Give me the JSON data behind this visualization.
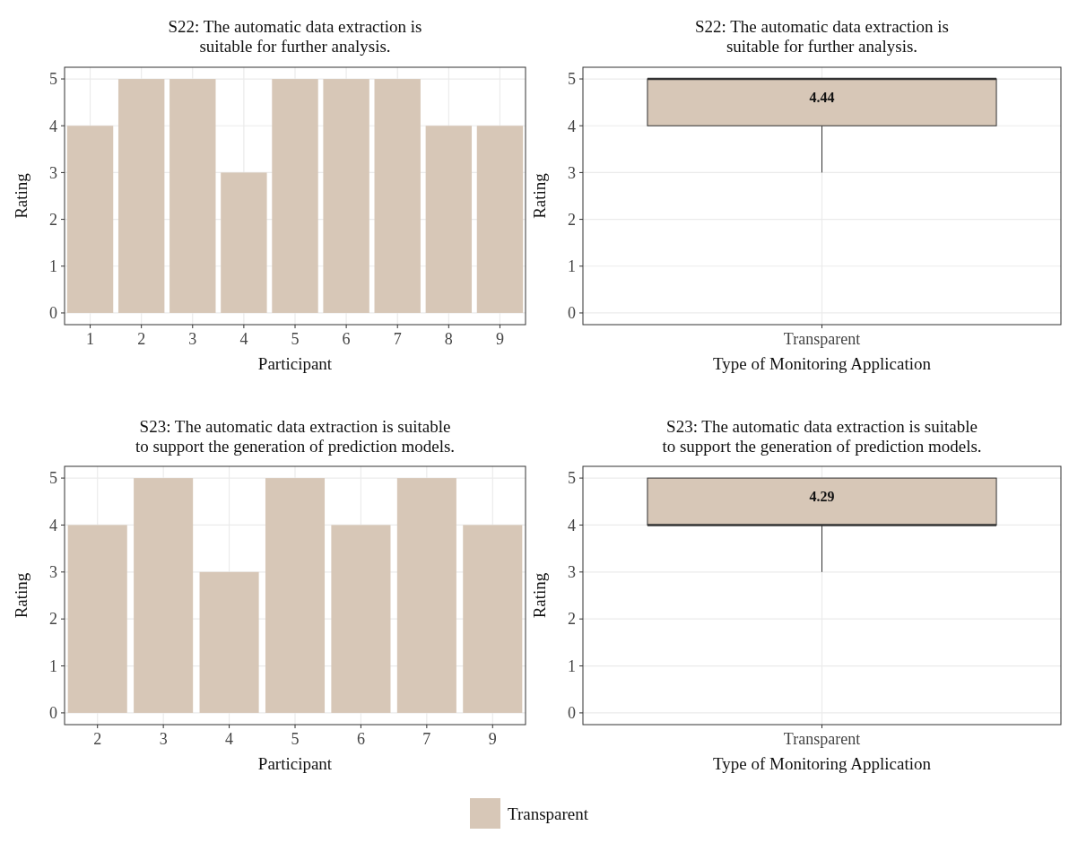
{
  "chart_data": [
    {
      "type": "bar",
      "title": "S22: The automatic data extraction is\nsuitable for further analysis.",
      "xlabel": "Participant",
      "ylabel": "Rating",
      "categories": [
        "1",
        "2",
        "3",
        "4",
        "5",
        "6",
        "7",
        "8",
        "9"
      ],
      "series": [
        {
          "name": "Transparent",
          "color": "#d7c7b7",
          "values": [
            4,
            5,
            5,
            3,
            5,
            5,
            5,
            4,
            4
          ]
        }
      ],
      "ylim": [
        -0.25,
        5.25
      ],
      "yticks": [
        0,
        1,
        2,
        3,
        4,
        5
      ],
      "grid": true
    },
    {
      "type": "box",
      "title": "S22: The automatic data extraction is\nsuitable for further analysis.",
      "xlabel": "Type of Monitoring Application",
      "ylabel": "Rating",
      "categories": [
        "Transparent"
      ],
      "series": [
        {
          "name": "Transparent",
          "color": "#d7c7b7",
          "boxes": [
            {
              "low": 3,
              "q1": 4,
              "median": 5,
              "q3": 5,
              "high": 5
            }
          ]
        }
      ],
      "annotations": [
        "4.44"
      ],
      "ylim": [
        -0.25,
        5.25
      ],
      "yticks": [
        0,
        1,
        2,
        3,
        4,
        5
      ],
      "grid": true
    },
    {
      "type": "bar",
      "title": "S23: The automatic data extraction is suitable\nto support the generation of prediction models.",
      "xlabel": "Participant",
      "ylabel": "Rating",
      "categories": [
        "2",
        "3",
        "4",
        "5",
        "6",
        "7",
        "9"
      ],
      "series": [
        {
          "name": "Transparent",
          "color": "#d7c7b7",
          "values": [
            4,
            5,
            3,
            5,
            4,
            5,
            4
          ]
        }
      ],
      "ylim": [
        -0.25,
        5.25
      ],
      "yticks": [
        0,
        1,
        2,
        3,
        4,
        5
      ],
      "grid": true
    },
    {
      "type": "box",
      "title": "S23: The automatic data extraction is suitable\nto support the generation of prediction models.",
      "xlabel": "Type of Monitoring Application",
      "ylabel": "Rating",
      "categories": [
        "Transparent"
      ],
      "series": [
        {
          "name": "Transparent",
          "color": "#d7c7b7",
          "boxes": [
            {
              "low": 3,
              "q1": 4,
              "median": 4,
              "q3": 5,
              "high": 5
            }
          ]
        }
      ],
      "annotations": [
        "4.29"
      ],
      "ylim": [
        -0.25,
        5.25
      ],
      "yticks": [
        0,
        1,
        2,
        3,
        4,
        5
      ],
      "grid": true,
      "legend": "bottom"
    }
  ]
}
